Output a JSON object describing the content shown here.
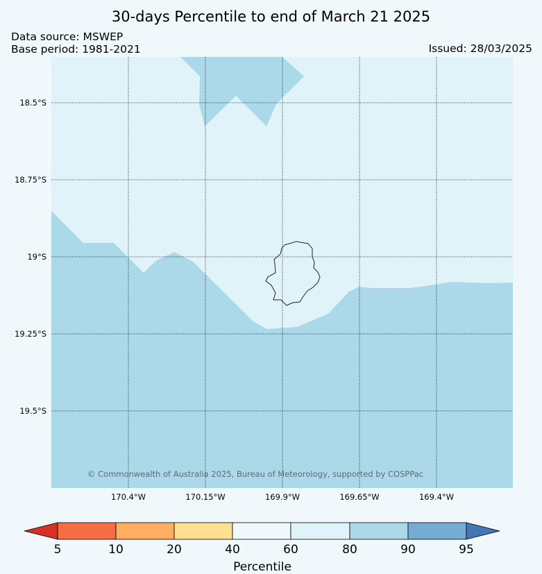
{
  "header": {
    "title": "30-days Percentile to end of March 21 2025",
    "data_source": "Data source: MSWEP",
    "base_period": "Base period: 1981-2021",
    "issued": "Issued: 28/03/2025"
  },
  "map": {
    "latitude_labels": [
      "18.5°S",
      "18.75°S",
      "19°S",
      "19.25°S",
      "19.5°S"
    ],
    "longitude_labels": [
      "170.4°W",
      "170.15°W",
      "169.9°W",
      "169.65°W",
      "169.4°W"
    ],
    "copyright": "© Commonwealth of Australia 2025, Bureau of Meteorology, supported by COSPPac",
    "fill_colors": {
      "background_class": "#e0f3f8",
      "shaded_class": "#abd9e9"
    }
  },
  "colorbar": {
    "title": "Percentile",
    "ticks": [
      "5",
      "10",
      "20",
      "40",
      "60",
      "80",
      "90",
      "95"
    ],
    "colors": [
      "#d73027",
      "#f46d43",
      "#fdae61",
      "#fee090",
      "#f0f8fb",
      "#e0f3f8",
      "#abd9e9",
      "#74add1",
      "#4575b4"
    ]
  }
}
